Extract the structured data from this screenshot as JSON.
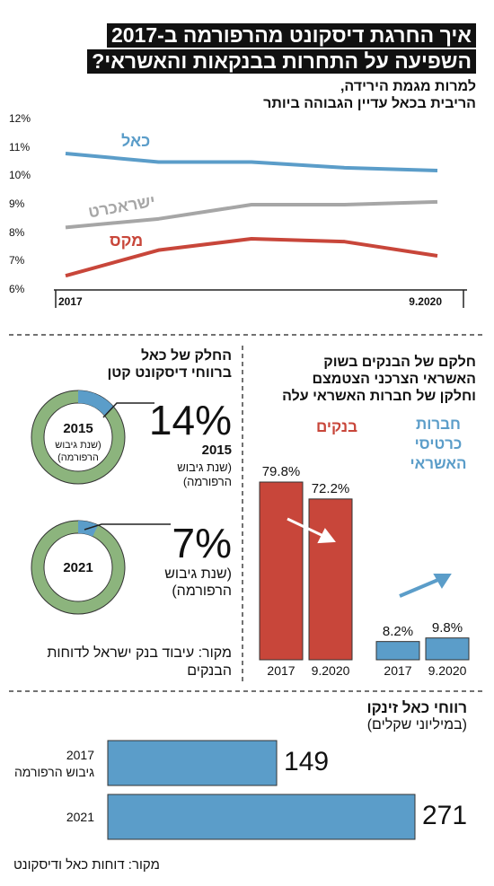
{
  "title": [
    "איך החרגת דיסקונט מהרפורמה ב-2017",
    "השפיעה  על התחרות בבנקאות והאשראי?"
  ],
  "chart_data": [
    {
      "type": "line",
      "subtitle": [
        "למרות מגמת הירידה,",
        "הריבית בכאל עדיין הגבוהה ביותר"
      ],
      "categories": [
        "2017",
        null,
        null,
        null,
        "9.2020"
      ],
      "ylim": [
        6,
        12
      ],
      "yticks": [
        {
          "value": 6,
          "label": "6%"
        },
        {
          "value": 7,
          "label": "7%"
        },
        {
          "value": 8,
          "label": "8%"
        },
        {
          "value": 9,
          "label": "9%"
        },
        {
          "value": 10,
          "label": "10%"
        },
        {
          "value": 11,
          "label": "11%"
        },
        {
          "value": 12,
          "label": "12%"
        }
      ],
      "series": [
        {
          "name": "כאל",
          "color": "#5b9dc9",
          "values": [
            10.8,
            10.5,
            10.5,
            10.3,
            10.2
          ]
        },
        {
          "name": "ישראכרט",
          "color": "#a6a6a6",
          "values": [
            8.2,
            8.5,
            9.0,
            9.0,
            9.1
          ]
        },
        {
          "name": "מקס",
          "color": "#c8463a",
          "values": [
            6.5,
            7.4,
            7.8,
            7.7,
            7.2
          ]
        }
      ]
    },
    {
      "type": "donut",
      "title": [
        "החלק של כאל",
        "ברווחי דיסקונט קטן"
      ],
      "categories": [
        "2015",
        "2021"
      ],
      "notes": [
        "(שנת גיבוש הרפורמה)",
        "(שנת גיבוש הרפורמה)"
      ],
      "values": [
        14,
        7
      ],
      "value_labels": [
        "14%",
        "7%"
      ],
      "color": "#5b9dc9",
      "ring_color": "#8cb47d",
      "source": "מקור: עיבוד בנק ישראל לדוחות הבנקים"
    },
    {
      "type": "bar",
      "title": [
        "חלקם של הבנקים בשוק",
        "האשראי הצרכני הצטמצם",
        "וחלקן של חברות האשראי עלה"
      ],
      "categories": [
        "2017",
        "9.2020"
      ],
      "series": [
        {
          "name": "בנקים",
          "color": "#c8463a",
          "values": [
            79.8,
            72.2
          ],
          "value_labels": [
            "79.8%",
            "72.2%"
          ]
        },
        {
          "name": "חברות כרטיסי האשראי",
          "color": "#5b9dc9",
          "values": [
            8.2,
            9.8
          ],
          "value_labels": [
            "8.2%",
            "9.8%"
          ]
        }
      ]
    },
    {
      "type": "hbar",
      "title": "רווחי כאל זינקו",
      "subtitle": "(במיליוני שקלים)",
      "categories": [
        "2017",
        "2021"
      ],
      "annotations": [
        "גיבוש הרפורמה"
      ],
      "values": [
        149,
        271
      ],
      "color": "#5b9dc9",
      "source": "מקור: דוחות כאל ודיסקונט"
    }
  ]
}
